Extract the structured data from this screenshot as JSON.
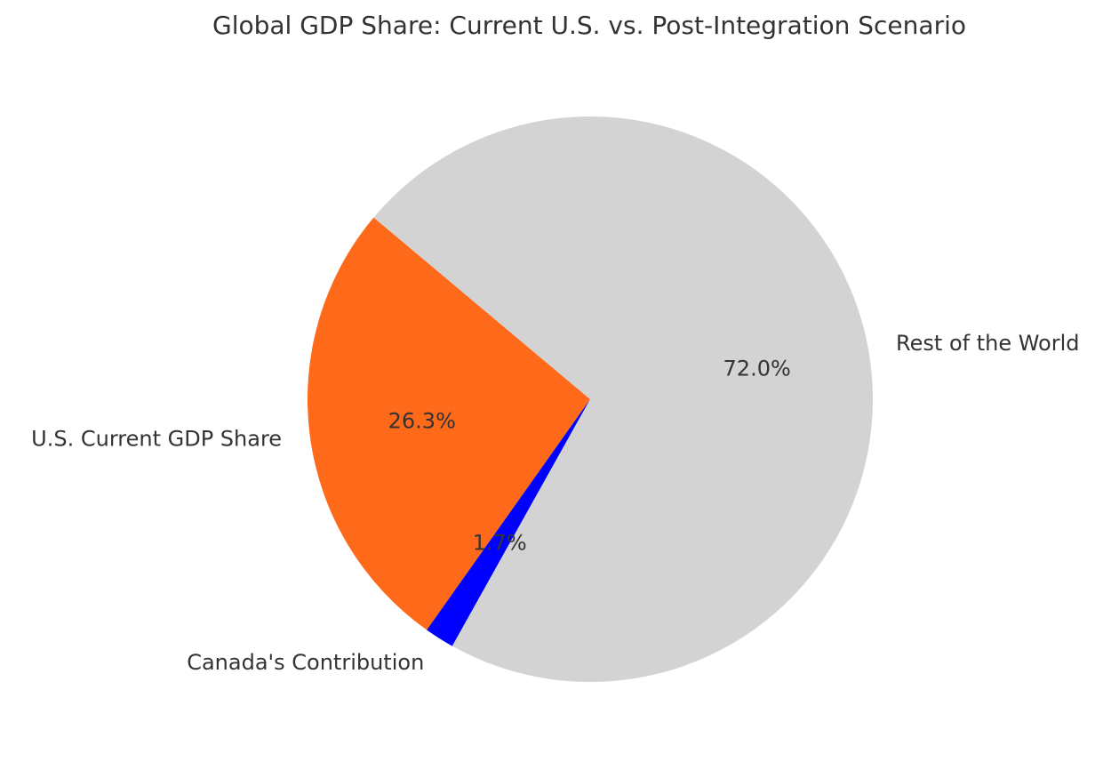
{
  "chart_data": {
    "type": "pie",
    "title": "Global GDP Share: Current U.S. vs. Post-Integration Scenario",
    "start_angle_deg": 140,
    "direction": "counterclockwise",
    "slices": [
      {
        "label": "U.S. Current GDP Share",
        "value": 26.3,
        "pct_label": "26.3%",
        "color": "#ff6a1a"
      },
      {
        "label": "Canada's Contribution",
        "value": 1.7,
        "pct_label": "1.7%",
        "color": "#0000ff"
      },
      {
        "label": "Rest of the World",
        "value": 72.0,
        "pct_label": "72.0%",
        "color": "#d3d3d3"
      }
    ]
  }
}
